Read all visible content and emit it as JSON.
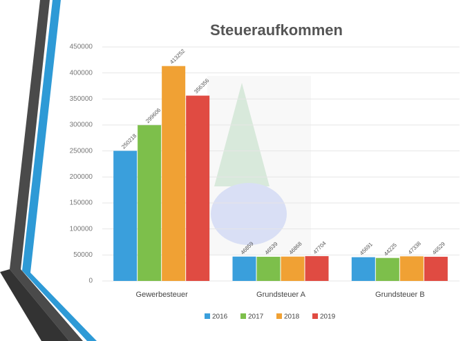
{
  "chart_data": {
    "type": "bar",
    "title": "Steueraufkommen",
    "categories": [
      "Gewerbesteuer",
      "Grundsteuer A",
      "Grundsteuer B"
    ],
    "series": [
      {
        "name": "2016",
        "color": "#3a9fdc",
        "values": [
          250218,
          46859,
          45691
        ]
      },
      {
        "name": "2017",
        "color": "#7dbf4b",
        "values": [
          299606,
          46539,
          44225
        ]
      },
      {
        "name": "2018",
        "color": "#f0a134",
        "values": [
          413252,
          46868,
          47338
        ]
      },
      {
        "name": "2019",
        "color": "#e04b42",
        "values": [
          356356,
          47704,
          46529
        ]
      }
    ],
    "ylim": [
      0,
      450000
    ],
    "yticks": [
      0,
      50000,
      100000,
      150000,
      200000,
      250000,
      300000,
      350000,
      400000,
      450000
    ],
    "grid": true,
    "legend": "bottom"
  }
}
